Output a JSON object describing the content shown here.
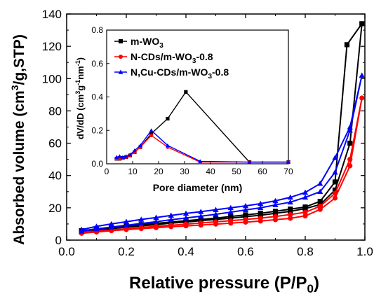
{
  "chart_data": [
    {
      "type": "line",
      "xlabel": "Relative pressure (P/P0)",
      "xlabel_parts": {
        "main": "Relative pressure (P/P",
        "sub": "0",
        "end": ")"
      },
      "ylabel": "Absorbed volume (cm3/g,STP)",
      "ylabel_parts": {
        "a": "Absorbed volume (cm",
        "sup": "3",
        "b": "/g,STP)"
      },
      "xlim": [
        0.0,
        1.0
      ],
      "ylim": [
        0,
        140
      ],
      "xticks": [
        "0.0",
        "0.2",
        "0.4",
        "0.6",
        "0.8",
        "1.0"
      ],
      "yticks": [
        "0",
        "20",
        "40",
        "60",
        "80",
        "100",
        "120",
        "140"
      ],
      "series": [
        {
          "name": "m-WO3",
          "color": "#000000",
          "marker": "square",
          "points": [
            [
              0.05,
              5.2
            ],
            [
              0.1,
              6.3
            ],
            [
              0.15,
              7.1
            ],
            [
              0.2,
              8.0
            ],
            [
              0.25,
              8.8
            ],
            [
              0.3,
              9.6
            ],
            [
              0.35,
              10.5
            ],
            [
              0.4,
              11.2
            ],
            [
              0.45,
              12.0
            ],
            [
              0.5,
              12.8
            ],
            [
              0.55,
              13.6
            ],
            [
              0.6,
              14.5
            ],
            [
              0.65,
              15.4
            ],
            [
              0.7,
              16.6
            ],
            [
              0.75,
              17.8
            ],
            [
              0.8,
              19.5
            ],
            [
              0.85,
              22.0
            ],
            [
              0.9,
              31.0
            ],
            [
              0.95,
              60.0
            ],
            [
              0.99,
              134.0
            ],
            [
              0.94,
              121.0
            ],
            [
              0.9,
              36.0
            ],
            [
              0.85,
              24.0
            ],
            [
              0.8,
              20.5
            ],
            [
              0.75,
              19.2
            ],
            [
              0.7,
              17.8
            ],
            [
              0.65,
              16.6
            ],
            [
              0.6,
              15.6
            ],
            [
              0.55,
              14.6
            ],
            [
              0.5,
              13.6
            ],
            [
              0.45,
              12.8
            ],
            [
              0.4,
              12.0
            ],
            [
              0.35,
              11.2
            ],
            [
              0.3,
              10.4
            ],
            [
              0.25,
              9.6
            ],
            [
              0.2,
              8.8
            ],
            [
              0.15,
              7.9
            ],
            [
              0.1,
              7.0
            ],
            [
              0.05,
              5.8
            ]
          ]
        },
        {
          "name": "N-CDs/m-WO3-0.8",
          "color": "#ff0000",
          "marker": "circle",
          "points": [
            [
              0.05,
              4.2
            ],
            [
              0.1,
              5.0
            ],
            [
              0.15,
              5.8
            ],
            [
              0.2,
              6.5
            ],
            [
              0.25,
              7.1
            ],
            [
              0.3,
              7.7
            ],
            [
              0.35,
              8.3
            ],
            [
              0.4,
              8.8
            ],
            [
              0.45,
              9.3
            ],
            [
              0.5,
              9.9
            ],
            [
              0.55,
              10.5
            ],
            [
              0.6,
              11.1
            ],
            [
              0.65,
              11.8
            ],
            [
              0.7,
              12.6
            ],
            [
              0.75,
              13.5
            ],
            [
              0.8,
              15.0
            ],
            [
              0.85,
              19.0
            ],
            [
              0.9,
              26.0
            ],
            [
              0.95,
              46.0
            ],
            [
              0.99,
              88.0
            ],
            [
              0.95,
              50.0
            ],
            [
              0.9,
              29.0
            ],
            [
              0.85,
              21.0
            ],
            [
              0.8,
              17.2
            ],
            [
              0.75,
              15.8
            ],
            [
              0.7,
              14.6
            ],
            [
              0.65,
              13.6
            ],
            [
              0.6,
              12.8
            ],
            [
              0.55,
              12.0
            ],
            [
              0.5,
              11.3
            ],
            [
              0.45,
              10.6
            ],
            [
              0.4,
              9.9
            ],
            [
              0.35,
              9.2
            ],
            [
              0.3,
              8.5
            ],
            [
              0.25,
              7.8
            ],
            [
              0.2,
              7.0
            ],
            [
              0.15,
              6.3
            ],
            [
              0.1,
              5.6
            ],
            [
              0.05,
              4.9
            ]
          ]
        },
        {
          "name": "N,Cu-CDs/m-WO3-0.8",
          "color": "#0000ff",
          "marker": "triangle",
          "points": [
            [
              0.05,
              5.5
            ],
            [
              0.1,
              6.9
            ],
            [
              0.15,
              8.0
            ],
            [
              0.2,
              9.2
            ],
            [
              0.25,
              10.3
            ],
            [
              0.3,
              11.4
            ],
            [
              0.35,
              12.6
            ],
            [
              0.4,
              13.7
            ],
            [
              0.45,
              14.8
            ],
            [
              0.5,
              16.0
            ],
            [
              0.55,
              17.3
            ],
            [
              0.6,
              18.7
            ],
            [
              0.65,
              20.0
            ],
            [
              0.7,
              21.8
            ],
            [
              0.75,
              23.5
            ],
            [
              0.8,
              26.5
            ],
            [
              0.85,
              30.0
            ],
            [
              0.9,
              42.0
            ],
            [
              0.95,
              68.0
            ],
            [
              0.99,
              102.0
            ],
            [
              0.95,
              70.0
            ],
            [
              0.9,
              51.0
            ],
            [
              0.85,
              35.0
            ],
            [
              0.8,
              29.5
            ],
            [
              0.75,
              26.5
            ],
            [
              0.7,
              24.3
            ],
            [
              0.65,
              22.6
            ],
            [
              0.6,
              21.2
            ],
            [
              0.55,
              20.0
            ],
            [
              0.5,
              18.8
            ],
            [
              0.45,
              17.6
            ],
            [
              0.4,
              16.5
            ],
            [
              0.35,
              15.3
            ],
            [
              0.3,
              14.0
            ],
            [
              0.25,
              12.8
            ],
            [
              0.2,
              11.4
            ],
            [
              0.15,
              10.0
            ],
            [
              0.1,
              8.5
            ],
            [
              0.05,
              6.5
            ]
          ]
        }
      ]
    },
    {
      "type": "line",
      "xlabel": "Pore diameter (nm)",
      "ylabel": "dV/dD (cm3g-1nm-1)",
      "ylabel_parts": {
        "a": "dV/dD (cm",
        "sup1": "3",
        "b": "g",
        "sup2": "-1",
        "c": "nm",
        "sup3": "-1",
        "d": ")"
      },
      "xlim": [
        0,
        70
      ],
      "ylim": [
        0,
        0.8
      ],
      "xticks": [
        "0",
        "10",
        "20",
        "30",
        "40",
        "50",
        "60",
        "70"
      ],
      "yticks": [
        "0.0",
        "0.2",
        "0.4",
        "0.6",
        "0.8"
      ],
      "legend": "top-left",
      "series": [
        {
          "name": "m-WO3",
          "color": "#000000",
          "marker": "square",
          "label_parts": {
            "main": "m-WO",
            "sub": "3",
            "end": ""
          },
          "points": [
            [
              3.8,
              0.03
            ],
            [
              5,
              0.03
            ],
            [
              6.2,
              0.035
            ],
            [
              7.5,
              0.04
            ],
            [
              9,
              0.05
            ],
            [
              10.8,
              0.07
            ],
            [
              13,
              0.1
            ],
            [
              17.2,
              0.18
            ],
            [
              23.5,
              0.27
            ],
            [
              30.5,
              0.43
            ],
            [
              55,
              0.01
            ],
            [
              70,
              0.01
            ]
          ]
        },
        {
          "name": "N-CDs/m-WO3-0.8",
          "color": "#ff0000",
          "marker": "circle",
          "label_parts": {
            "main": "N-CDs/m-WO",
            "sub": "3",
            "end": "-0.8"
          },
          "points": [
            [
              3.8,
              0.03
            ],
            [
              5,
              0.03
            ],
            [
              6.2,
              0.035
            ],
            [
              7.5,
              0.04
            ],
            [
              9,
              0.05
            ],
            [
              10.8,
              0.07
            ],
            [
              13,
              0.1
            ],
            [
              17.2,
              0.17
            ],
            [
              23.5,
              0.1
            ],
            [
              36,
              0.01
            ],
            [
              55,
              0.01
            ],
            [
              70,
              0.01
            ]
          ]
        },
        {
          "name": "N,Cu-CDs/m-WO3-0.8",
          "color": "#0000ff",
          "marker": "triangle",
          "label_parts": {
            "main": "N,Cu-CDs/m-WO",
            "sub": "3",
            "end": "-0.8"
          },
          "points": [
            [
              3.8,
              0.04
            ],
            [
              5,
              0.045
            ],
            [
              6.2,
              0.04
            ],
            [
              7.5,
              0.045
            ],
            [
              9,
              0.055
            ],
            [
              10.8,
              0.08
            ],
            [
              13,
              0.11
            ],
            [
              17.2,
              0.2
            ],
            [
              23.5,
              0.11
            ],
            [
              36,
              0.015
            ],
            [
              55,
              0.01
            ],
            [
              70,
              0.01
            ]
          ]
        }
      ]
    }
  ]
}
